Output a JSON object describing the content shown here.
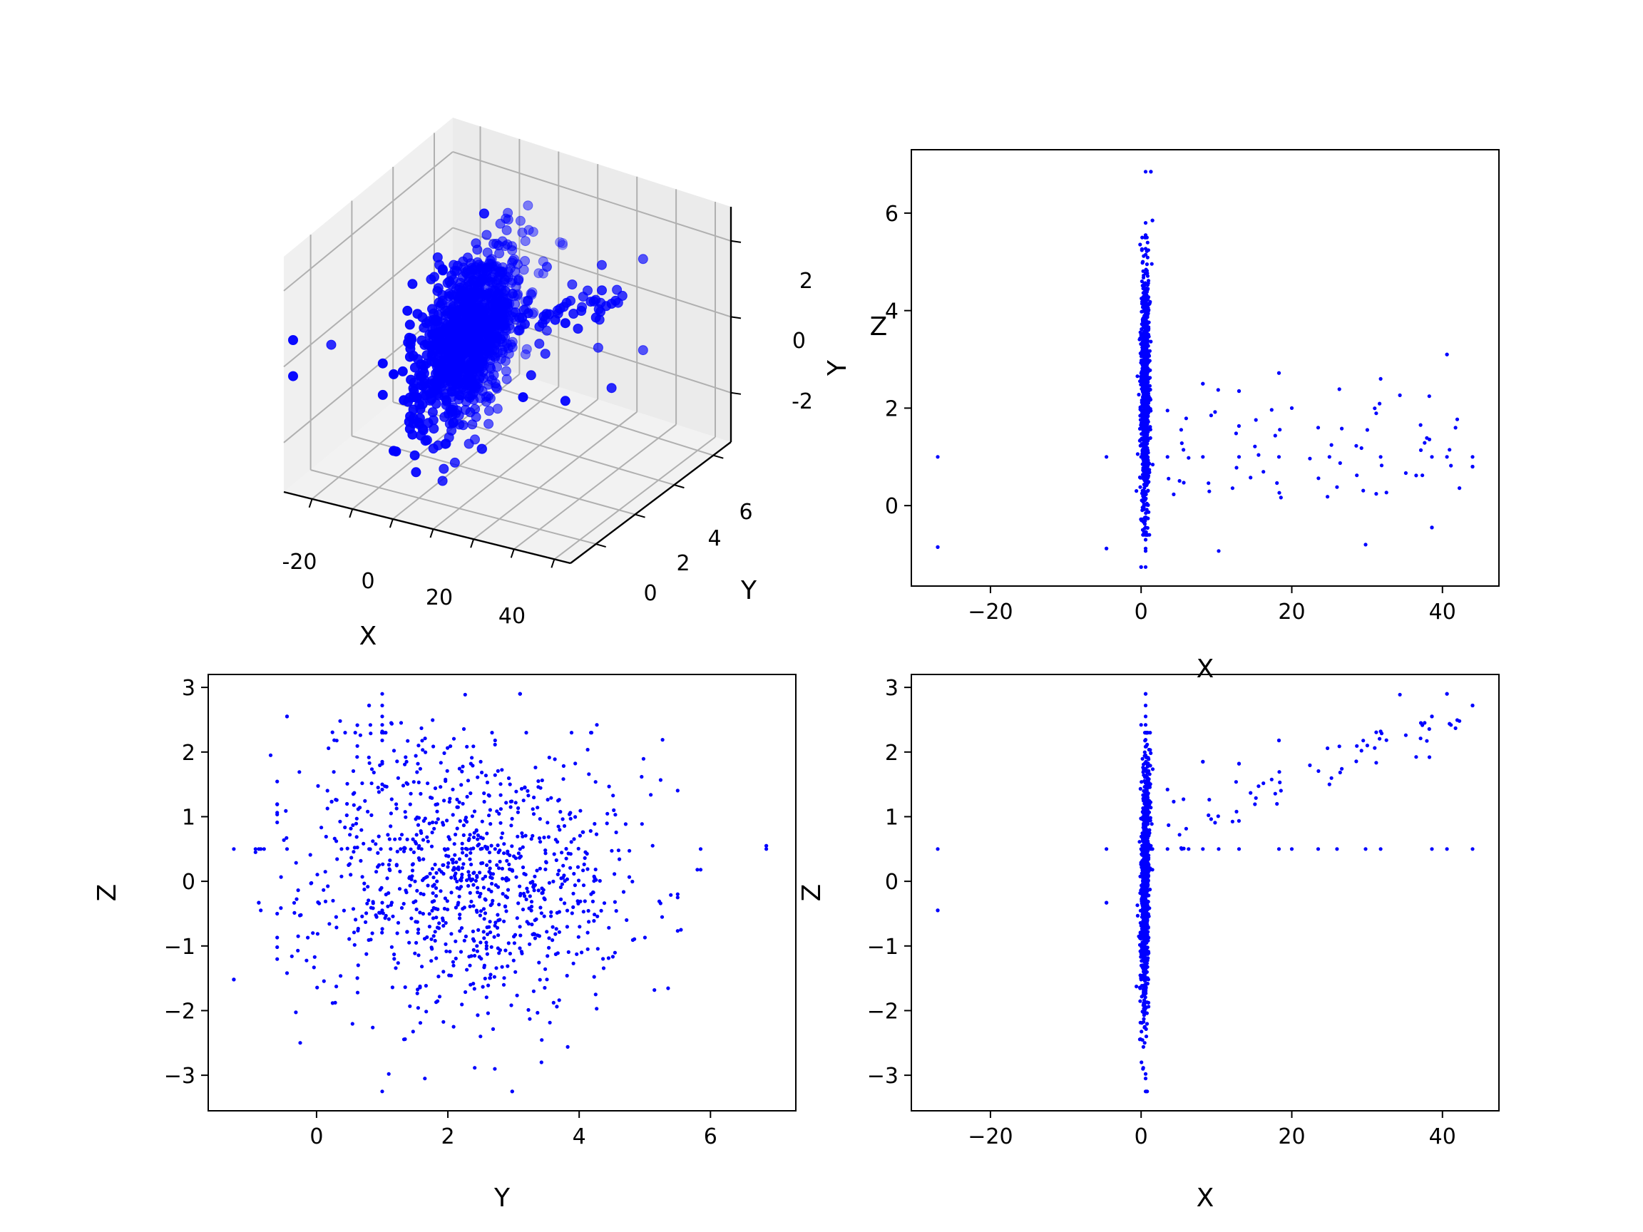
{
  "figure": {
    "background": "#ffffff",
    "point_color": "#0000ff"
  },
  "chart_data": [
    {
      "id": "xyz",
      "type": "scatter",
      "projection": "3d",
      "title": "",
      "xlabel": "X",
      "ylabel": "Y",
      "zlabel": "Z",
      "xlim": [
        -27,
        44
      ],
      "ylim": [
        -1.3,
        6.9
      ],
      "zlim": [
        -3.3,
        2.9
      ],
      "xticks": [
        -20,
        0,
        20,
        40
      ],
      "yticks": [
        0,
        2,
        4,
        6
      ],
      "zticks": [
        -2,
        0,
        2
      ],
      "grid": true,
      "color": "#0000ff",
      "note": "3D scatter of the same point cloud; see the 2D projections for values"
    },
    {
      "id": "xy",
      "type": "scatter",
      "title": "",
      "xlabel": "X",
      "ylabel": "Y",
      "xlim": [
        -30.5,
        47.5
      ],
      "ylim": [
        -1.65,
        7.3
      ],
      "xticks": [
        -20,
        0,
        20,
        40
      ],
      "yticks": [
        0,
        2,
        4,
        6
      ],
      "grid": false,
      "color": "#0000ff",
      "highlighted_points": [
        {
          "x": -27.0,
          "y": -0.85
        },
        {
          "x": -4.6,
          "y": -0.88
        },
        {
          "x": 0.0,
          "y": -1.26
        },
        {
          "x": 1.3,
          "y": 6.85
        },
        {
          "x": 1.5,
          "y": 5.85
        },
        {
          "x": 3.5,
          "y": 1.95
        },
        {
          "x": 5.4,
          "y": 1.28
        },
        {
          "x": 6.3,
          "y": 0.98
        },
        {
          "x": 8.2,
          "y": 2.5
        },
        {
          "x": 10.3,
          "y": -0.93
        },
        {
          "x": 13.0,
          "y": 2.35
        },
        {
          "x": 18.3,
          "y": 2.72
        },
        {
          "x": 20.0,
          "y": 2.0
        },
        {
          "x": 23.5,
          "y": 1.6
        },
        {
          "x": 26.0,
          "y": 0.38
        },
        {
          "x": 29.8,
          "y": -0.8
        },
        {
          "x": 31.8,
          "y": 2.6
        },
        {
          "x": 38.6,
          "y": -0.45
        },
        {
          "x": 40.6,
          "y": 3.1
        },
        {
          "x": 44.0,
          "y": 0.8
        }
      ],
      "point_count_approx": 1000
    },
    {
      "id": "yz",
      "type": "scatter",
      "title": "",
      "xlabel": "Y",
      "ylabel": "Z",
      "xlim": [
        -1.65,
        7.3
      ],
      "ylim": [
        -3.55,
        3.2
      ],
      "xticks": [
        0,
        2,
        4,
        6
      ],
      "yticks": [
        -3,
        -2,
        -1,
        0,
        1,
        2,
        3
      ],
      "grid": false,
      "color": "#0000ff",
      "highlighted_points": [
        {
          "x": -1.26,
          "y": -1.52
        },
        {
          "x": -0.93,
          "y": 0.45
        },
        {
          "x": -0.88,
          "y": -0.33
        },
        {
          "x": -0.7,
          "y": 1.95
        },
        {
          "x": -0.45,
          "y": 2.55
        },
        {
          "x": -0.45,
          "y": -1.42
        },
        {
          "x": 0.8,
          "y": 2.72
        },
        {
          "x": 3.1,
          "y": 2.9
        },
        {
          "x": 1.1,
          "y": -2.98
        },
        {
          "x": 1.65,
          "y": -3.05
        },
        {
          "x": 2.98,
          "y": -3.25
        },
        {
          "x": 4.27,
          "y": 2.42
        },
        {
          "x": 5.27,
          "y": 2.19
        },
        {
          "x": 5.8,
          "y": 0.18
        },
        {
          "x": 6.85,
          "y": 0.55
        },
        {
          "x": 5.55,
          "y": -0.75
        }
      ],
      "point_count_approx": 1000
    },
    {
      "id": "xz",
      "type": "scatter",
      "title": "",
      "xlabel": "X",
      "ylabel": "Z",
      "xlim": [
        -30.5,
        47.5
      ],
      "ylim": [
        -3.55,
        3.2
      ],
      "xticks": [
        -20,
        0,
        20,
        40
      ],
      "yticks": [
        -3,
        -2,
        -1,
        0,
        1,
        2,
        3
      ],
      "grid": false,
      "color": "#0000ff",
      "highlighted_points": [
        {
          "x": -27.0,
          "y": -0.45
        },
        {
          "x": -4.6,
          "y": -0.33
        },
        {
          "x": 0.0,
          "y": 2.42
        },
        {
          "x": 0.8,
          "y": -3.25
        },
        {
          "x": 3.5,
          "y": 1.42
        },
        {
          "x": 8.2,
          "y": 1.85
        },
        {
          "x": 13.0,
          "y": 1.82
        },
        {
          "x": 18.3,
          "y": 2.18
        },
        {
          "x": 25.0,
          "y": 1.5
        },
        {
          "x": 31.8,
          "y": 2.32
        },
        {
          "x": 38.6,
          "y": 2.55
        },
        {
          "x": 40.6,
          "y": 2.9
        },
        {
          "x": 44.0,
          "y": 2.72
        }
      ],
      "point_count_approx": 1000
    }
  ]
}
